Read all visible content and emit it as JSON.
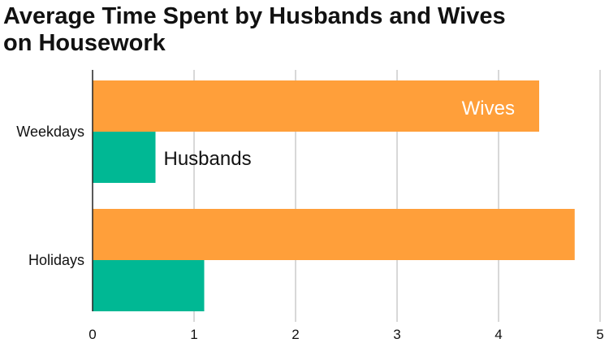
{
  "chart_data": {
    "type": "bar",
    "orientation": "horizontal",
    "title_lines": [
      "Average Time Spent by Husbands and Wives",
      "on Housework"
    ],
    "categories": [
      "Weekdays",
      "Holidays"
    ],
    "series": [
      {
        "name": "Wives",
        "values": [
          4.4,
          4.75
        ],
        "color": "#FF9F3A"
      },
      {
        "name": "Husbands",
        "values": [
          0.62,
          1.1
        ],
        "color": "#00B894"
      }
    ],
    "xlim": [
      0,
      5
    ],
    "xticks": [
      "0",
      "1",
      "2",
      "3",
      "4",
      "5"
    ],
    "grid": true,
    "legend": "direct labels on bars"
  }
}
